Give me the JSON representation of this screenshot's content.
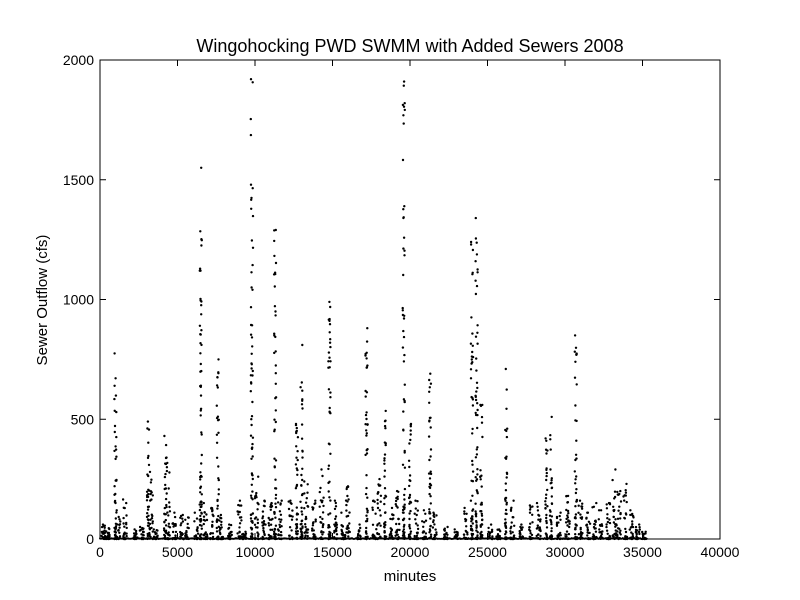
{
  "chart_data": {
    "type": "scatter",
    "title": "Wingohocking PWD SWMM with Added Sewers 2008",
    "xlabel": "minutes",
    "ylabel": "Sewer Outflow (cfs)",
    "xlim": [
      0,
      40000
    ],
    "ylim": [
      0,
      2000
    ],
    "xticks": [
      0,
      5000,
      10000,
      15000,
      20000,
      25000,
      30000,
      35000,
      40000
    ],
    "yticks": [
      0,
      500,
      1000,
      1500,
      2000
    ],
    "grid": false,
    "marker_color": "#000000",
    "bursts": [
      {
        "x": 200,
        "peak": 60
      },
      {
        "x": 500,
        "peak": 45
      },
      {
        "x": 1000,
        "peak": 775
      },
      {
        "x": 1200,
        "peak": 120
      },
      {
        "x": 1600,
        "peak": 165
      },
      {
        "x": 2300,
        "peak": 40
      },
      {
        "x": 2700,
        "peak": 50
      },
      {
        "x": 3100,
        "peak": 490
      },
      {
        "x": 3300,
        "peak": 280
      },
      {
        "x": 3600,
        "peak": 40
      },
      {
        "x": 4200,
        "peak": 430
      },
      {
        "x": 4400,
        "peak": 340
      },
      {
        "x": 4800,
        "peak": 110
      },
      {
        "x": 5300,
        "peak": 100
      },
      {
        "x": 5600,
        "peak": 90
      },
      {
        "x": 6200,
        "peak": 110
      },
      {
        "x": 6500,
        "peak": 1550
      },
      {
        "x": 6800,
        "peak": 150
      },
      {
        "x": 7200,
        "peak": 130
      },
      {
        "x": 7600,
        "peak": 750
      },
      {
        "x": 7800,
        "peak": 100
      },
      {
        "x": 8400,
        "peak": 60
      },
      {
        "x": 9000,
        "peak": 160
      },
      {
        "x": 9300,
        "peak": 30
      },
      {
        "x": 9800,
        "peak": 1920
      },
      {
        "x": 10100,
        "peak": 260
      },
      {
        "x": 10600,
        "peak": 160
      },
      {
        "x": 11000,
        "peak": 150
      },
      {
        "x": 11300,
        "peak": 1290
      },
      {
        "x": 11600,
        "peak": 160
      },
      {
        "x": 12300,
        "peak": 160
      },
      {
        "x": 12700,
        "peak": 480
      },
      {
        "x": 13000,
        "peak": 810
      },
      {
        "x": 13300,
        "peak": 240
      },
      {
        "x": 13800,
        "peak": 160
      },
      {
        "x": 14300,
        "peak": 290
      },
      {
        "x": 14800,
        "peak": 990
      },
      {
        "x": 15200,
        "peak": 160
      },
      {
        "x": 15700,
        "peak": 110
      },
      {
        "x": 16000,
        "peak": 220
      },
      {
        "x": 16700,
        "peak": 60
      },
      {
        "x": 17200,
        "peak": 880
      },
      {
        "x": 17700,
        "peak": 160
      },
      {
        "x": 18000,
        "peak": 250
      },
      {
        "x": 18400,
        "peak": 535
      },
      {
        "x": 18800,
        "peak": 130
      },
      {
        "x": 19200,
        "peak": 200
      },
      {
        "x": 19600,
        "peak": 1910
      },
      {
        "x": 20000,
        "peak": 480
      },
      {
        "x": 20400,
        "peak": 160
      },
      {
        "x": 20900,
        "peak": 120
      },
      {
        "x": 21300,
        "peak": 690
      },
      {
        "x": 21600,
        "peak": 110
      },
      {
        "x": 22300,
        "peak": 50
      },
      {
        "x": 23000,
        "peak": 40
      },
      {
        "x": 23600,
        "peak": 130
      },
      {
        "x": 24000,
        "peak": 1240
      },
      {
        "x": 24300,
        "peak": 1340
      },
      {
        "x": 24600,
        "peak": 560
      },
      {
        "x": 25200,
        "peak": 60
      },
      {
        "x": 25700,
        "peak": 40
      },
      {
        "x": 26200,
        "peak": 710
      },
      {
        "x": 26600,
        "peak": 160
      },
      {
        "x": 27200,
        "peak": 60
      },
      {
        "x": 27800,
        "peak": 140
      },
      {
        "x": 28300,
        "peak": 150
      },
      {
        "x": 28800,
        "peak": 420
      },
      {
        "x": 29100,
        "peak": 510
      },
      {
        "x": 29600,
        "peak": 110
      },
      {
        "x": 30200,
        "peak": 180
      },
      {
        "x": 30700,
        "peak": 850
      },
      {
        "x": 31000,
        "peak": 160
      },
      {
        "x": 31500,
        "peak": 110
      },
      {
        "x": 31900,
        "peak": 150
      },
      {
        "x": 32300,
        "peak": 120
      },
      {
        "x": 32800,
        "peak": 150
      },
      {
        "x": 33200,
        "peak": 290
      },
      {
        "x": 33500,
        "peak": 200
      },
      {
        "x": 33900,
        "peak": 230
      },
      {
        "x": 34300,
        "peak": 120
      },
      {
        "x": 34700,
        "peak": 60
      },
      {
        "x": 35100,
        "peak": 30
      }
    ]
  }
}
